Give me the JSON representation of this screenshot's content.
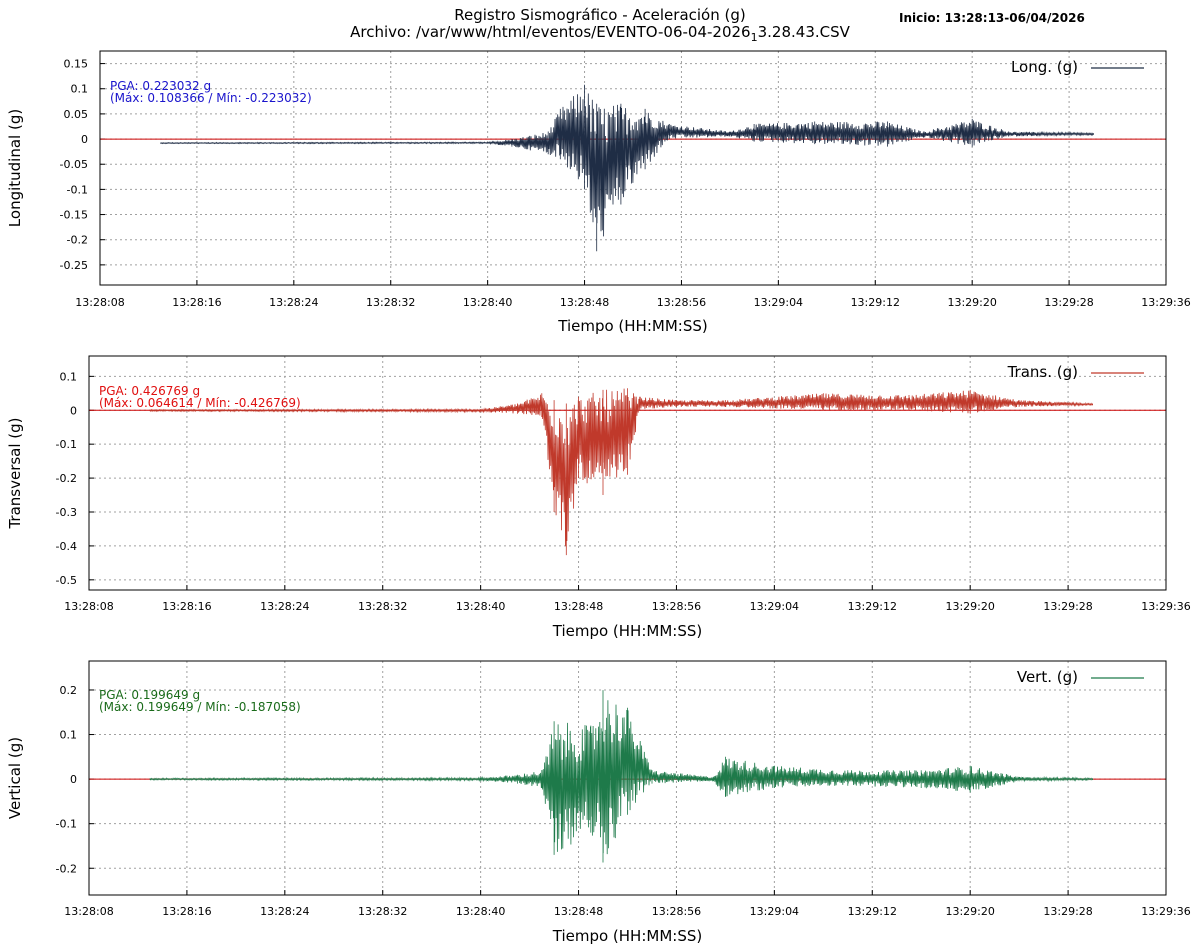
{
  "header": {
    "title_line_1": "Registro Sismográfico - Aceleración (g)",
    "title_line_2": "Archivo: /var/www/html/eventos/EVENTO-06-04-2026_13.28.43.CSV",
    "title_line_2_main": "Archivo: /var/www/html/eventos/EVENTO-06-04-2026",
    "title_line_2_sub": "1",
    "title_line_2_rest": "3.28.43.CSV",
    "start_label": "Inicio: 13:28:13-06/04/2026"
  },
  "chart_data": [
    {
      "type": "line",
      "ylabel": "Longitudinal (g)",
      "xlabel": "Tiempo (HH:MM:SS)",
      "x_ticks": [
        "13:28:08",
        "13:28:16",
        "13:28:24",
        "13:28:32",
        "13:28:40",
        "13:28:48",
        "13:28:56",
        "13:29:04",
        "13:29:12",
        "13:29:20",
        "13:29:28",
        "13:29:36"
      ],
      "y_ticks": [
        0.15,
        0.1,
        0.05,
        0,
        -0.05,
        -0.1,
        -0.15,
        -0.2,
        -0.25
      ],
      "ylim": [
        -0.29,
        0.175
      ],
      "xlim": [
        "13:28:08",
        "13:29:36"
      ],
      "grid": true,
      "legend": "top-right",
      "series": [
        {
          "name": "Long. (g)",
          "color": "#1f2d45"
        }
      ],
      "annotation": {
        "line1": "PGA: 0.223032 g",
        "line2": "(Máx: 0.108366 / Mín: -0.223032)",
        "color": "#1a14cc"
      },
      "pga": 0.223032,
      "max": 0.108366,
      "min": -0.223032,
      "baseline": 0.01,
      "envelope": [
        {
          "t": "13:28:13",
          "lo": -0.009,
          "hi": -0.007
        },
        {
          "t": "13:28:40",
          "lo": -0.009,
          "hi": -0.006
        },
        {
          "t": "13:28:42",
          "lo": -0.015,
          "hi": 0.0
        },
        {
          "t": "13:28:45",
          "lo": -0.03,
          "hi": 0.015
        },
        {
          "t": "13:28:46",
          "lo": -0.04,
          "hi": 0.06
        },
        {
          "t": "13:28:48",
          "lo": -0.1,
          "hi": 0.108
        },
        {
          "t": "13:28:49",
          "lo": -0.223,
          "hi": 0.07
        },
        {
          "t": "13:28:51",
          "lo": -0.13,
          "hi": 0.07
        },
        {
          "t": "13:28:53",
          "lo": -0.06,
          "hi": 0.06
        },
        {
          "t": "13:28:55",
          "lo": 0.0,
          "hi": 0.03
        },
        {
          "t": "13:29:00",
          "lo": 0.005,
          "hi": 0.015
        },
        {
          "t": "13:29:02",
          "lo": -0.005,
          "hi": 0.03
        },
        {
          "t": "13:29:07",
          "lo": -0.01,
          "hi": 0.035
        },
        {
          "t": "13:29:13",
          "lo": -0.015,
          "hi": 0.035
        },
        {
          "t": "13:29:16",
          "lo": 0.003,
          "hi": 0.015
        },
        {
          "t": "13:29:20",
          "lo": -0.015,
          "hi": 0.04
        },
        {
          "t": "13:29:23",
          "lo": 0.005,
          "hi": 0.015
        },
        {
          "t": "13:29:30",
          "lo": 0.008,
          "hi": 0.012
        }
      ]
    },
    {
      "type": "line",
      "ylabel": "Transversal (g)",
      "xlabel": "Tiempo (HH:MM:SS)",
      "x_ticks": [
        "13:28:08",
        "13:28:16",
        "13:28:24",
        "13:28:32",
        "13:28:40",
        "13:28:48",
        "13:28:56",
        "13:29:04",
        "13:29:12",
        "13:29:20",
        "13:29:28",
        "13:29:36"
      ],
      "y_ticks": [
        0.1,
        0,
        -0.1,
        -0.2,
        -0.3,
        -0.4,
        -0.5
      ],
      "ylim": [
        -0.53,
        0.16
      ],
      "xlim": [
        "13:28:08",
        "13:29:36"
      ],
      "grid": true,
      "legend": "top-right",
      "series": [
        {
          "name": "Trans. (g)",
          "color": "#c0392b"
        }
      ],
      "annotation": {
        "line1": "PGA: 0.426769 g",
        "line2": "(Máx: 0.064614 / Mín: -0.426769)",
        "color": "#e01010"
      },
      "pga": 0.426769,
      "max": 0.064614,
      "min": -0.426769,
      "baseline": 0.02,
      "envelope": [
        {
          "t": "13:28:13",
          "lo": -0.003,
          "hi": 0.002
        },
        {
          "t": "13:28:40",
          "lo": -0.005,
          "hi": 0.003
        },
        {
          "t": "13:28:43",
          "lo": -0.01,
          "hi": 0.02
        },
        {
          "t": "13:28:45",
          "lo": -0.02,
          "hi": 0.05
        },
        {
          "t": "13:28:46",
          "lo": -0.3,
          "hi": 0.03
        },
        {
          "t": "13:28:47",
          "lo": -0.427,
          "hi": 0.02
        },
        {
          "t": "13:28:48",
          "lo": -0.2,
          "hi": 0.04
        },
        {
          "t": "13:28:50",
          "lo": -0.25,
          "hi": 0.06
        },
        {
          "t": "13:28:52",
          "lo": -0.19,
          "hi": 0.065
        },
        {
          "t": "13:28:53",
          "lo": 0.0,
          "hi": 0.04
        },
        {
          "t": "13:28:56",
          "lo": 0.01,
          "hi": 0.03
        },
        {
          "t": "13:29:00",
          "lo": 0.01,
          "hi": 0.03
        },
        {
          "t": "13:29:08",
          "lo": 0.0,
          "hi": 0.05
        },
        {
          "t": "13:29:15",
          "lo": 0.0,
          "hi": 0.045
        },
        {
          "t": "13:29:20",
          "lo": -0.01,
          "hi": 0.06
        },
        {
          "t": "13:29:24",
          "lo": 0.01,
          "hi": 0.03
        },
        {
          "t": "13:29:30",
          "lo": 0.015,
          "hi": 0.02
        }
      ]
    },
    {
      "type": "line",
      "ylabel": "Vertical (g)",
      "xlabel": "Tiempo (HH:MM:SS)",
      "x_ticks": [
        "13:28:08",
        "13:28:16",
        "13:28:24",
        "13:28:32",
        "13:28:40",
        "13:28:48",
        "13:28:56",
        "13:29:04",
        "13:29:12",
        "13:29:20",
        "13:29:28",
        "13:29:36"
      ],
      "y_ticks": [
        0.2,
        0.1,
        0,
        -0.1,
        -0.2
      ],
      "ylim": [
        -0.26,
        0.265
      ],
      "xlim": [
        "13:28:08",
        "13:29:36"
      ],
      "grid": true,
      "legend": "top-right",
      "series": [
        {
          "name": "Vert. (g)",
          "color": "#1e7a4a"
        }
      ],
      "annotation": {
        "line1": "PGA: 0.199649 g",
        "line2": "(Máx: 0.199649 / Mín: -0.187058)",
        "color": "#1a6b1a"
      },
      "pga": 0.199649,
      "max": 0.199649,
      "min": -0.187058,
      "baseline": 0.0,
      "envelope": [
        {
          "t": "13:28:13",
          "lo": -0.002,
          "hi": 0.002
        },
        {
          "t": "13:28:40",
          "lo": -0.003,
          "hi": 0.003
        },
        {
          "t": "13:28:43",
          "lo": -0.01,
          "hi": 0.01
        },
        {
          "t": "13:28:45",
          "lo": -0.02,
          "hi": 0.02
        },
        {
          "t": "13:28:46",
          "lo": -0.17,
          "hi": 0.13
        },
        {
          "t": "13:28:49",
          "lo": -0.12,
          "hi": 0.12
        },
        {
          "t": "13:28:50",
          "lo": -0.187,
          "hi": 0.1997
        },
        {
          "t": "13:28:52",
          "lo": -0.08,
          "hi": 0.16
        },
        {
          "t": "13:28:54",
          "lo": -0.01,
          "hi": 0.02
        },
        {
          "t": "13:28:59",
          "lo": -0.005,
          "hi": 0.005
        },
        {
          "t": "13:29:00",
          "lo": -0.04,
          "hi": 0.05
        },
        {
          "t": "13:29:04",
          "lo": -0.02,
          "hi": 0.03
        },
        {
          "t": "13:29:10",
          "lo": -0.015,
          "hi": 0.02
        },
        {
          "t": "13:29:16",
          "lo": -0.02,
          "hi": 0.02
        },
        {
          "t": "13:29:20",
          "lo": -0.03,
          "hi": 0.03
        },
        {
          "t": "13:29:24",
          "lo": -0.005,
          "hi": 0.005
        },
        {
          "t": "13:29:30",
          "lo": -0.002,
          "hi": 0.002
        }
      ]
    }
  ]
}
